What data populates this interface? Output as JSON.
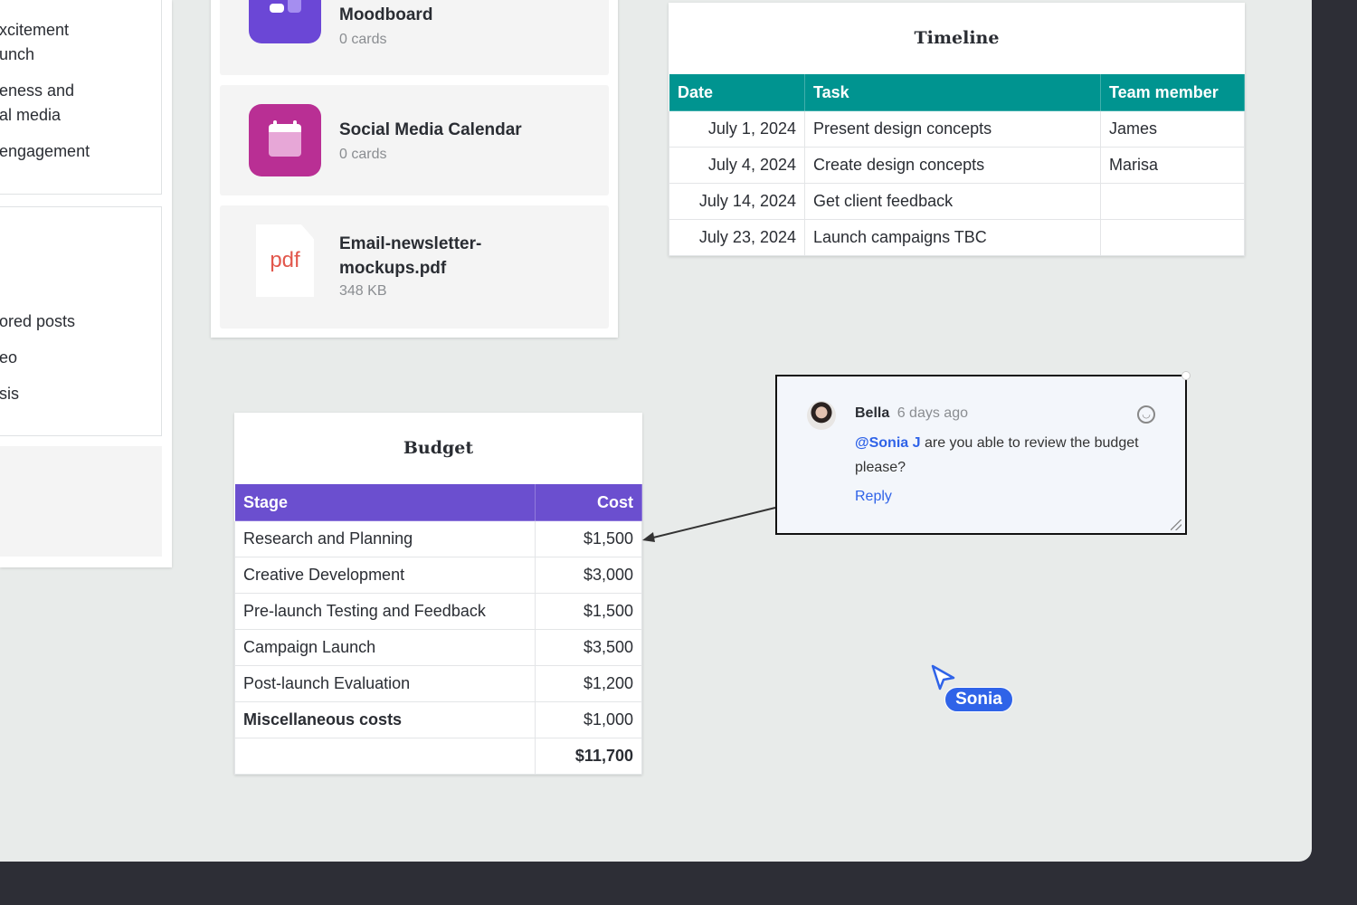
{
  "left_panel": {
    "lines1": [
      "xcitement",
      "unch",
      "eness and",
      "al media",
      "engagement"
    ],
    "lines2": [
      "ored posts",
      "eo",
      "sis"
    ]
  },
  "files": [
    {
      "title": "Moodboard",
      "sub": "0 cards",
      "icon": "board-icon",
      "color": "#6b47d6"
    },
    {
      "title": "Social Media Calendar",
      "sub": "0 cards",
      "icon": "calendar-icon",
      "color": "#b92f94"
    },
    {
      "title": "Email-newsletter-mockups.pdf",
      "sub": "348 KB",
      "icon": "pdf-icon",
      "icon_text": "pdf"
    }
  ],
  "timeline": {
    "title": "Timeline",
    "header_color": "#009490",
    "columns": [
      "Date",
      "Task",
      "Team member"
    ],
    "rows": [
      [
        "July 1, 2024",
        "Present design concepts",
        "James"
      ],
      [
        "July 4, 2024",
        "Create design concepts",
        "Marisa"
      ],
      [
        "July 14, 2024",
        "Get client feedback",
        ""
      ],
      [
        "July 23, 2024",
        "Launch campaigns TBC",
        ""
      ]
    ]
  },
  "budget": {
    "title": "Budget",
    "header_color": "#6b4fcf",
    "columns": [
      "Stage",
      "Cost"
    ],
    "rows": [
      [
        "Research and Planning",
        "$1,500"
      ],
      [
        "Creative Development",
        "$3,000"
      ],
      [
        "Pre-launch Testing and Feedback",
        "$1,500"
      ],
      [
        "Campaign Launch",
        "$3,500"
      ],
      [
        "Post-launch Evaluation",
        "$1,200"
      ],
      [
        "Miscellaneous costs",
        "$1,000"
      ]
    ],
    "total": "$11,700"
  },
  "comment": {
    "author": "Bella",
    "time": "6 days ago",
    "mention": "@Sonia J",
    "text": " are you able to review the budget please?",
    "reply": "Reply"
  },
  "cursor": {
    "name": "Sonia",
    "color": "#2f63e8"
  }
}
